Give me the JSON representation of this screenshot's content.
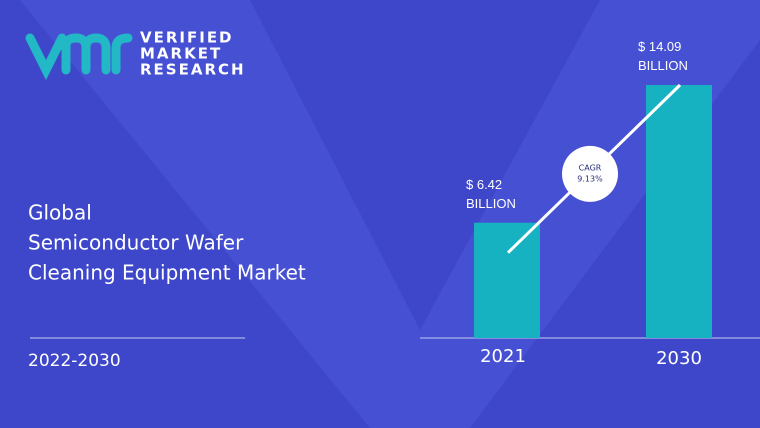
{
  "logo": [
    "VERIFIED",
    "MARKET",
    "RESEARCH"
  ],
  "chart_data": {
    "type": "bar",
    "title_lines": [
      "Global",
      "Semiconductor Wafer",
      "Cleaning Equipment Market"
    ],
    "subtitle": "2022-2030",
    "categories": [
      "2021",
      "2030"
    ],
    "values": [
      6.42,
      14.09
    ],
    "value_labels": [
      "$ 6.42 BILLION",
      "$ 14.09 BILLION"
    ],
    "color": "#17b2c2",
    "annotations": [
      "CAGR",
      "9.13%"
    ]
  }
}
